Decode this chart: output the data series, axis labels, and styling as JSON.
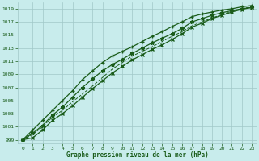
{
  "xlabel": "Graphe pression niveau de la mer (hPa)",
  "xlim": [
    -0.5,
    23.5
  ],
  "ylim": [
    998.5,
    1020
  ],
  "yticks": [
    999,
    1001,
    1003,
    1005,
    1007,
    1009,
    1011,
    1013,
    1015,
    1017,
    1019
  ],
  "xticks": [
    0,
    1,
    2,
    3,
    4,
    5,
    6,
    7,
    8,
    9,
    10,
    11,
    12,
    13,
    14,
    15,
    16,
    17,
    18,
    19,
    20,
    21,
    22,
    23
  ],
  "bg_color": "#c8ecec",
  "line_color": "#1a5c1a",
  "grid_color": "#a0c8c8",
  "line_main": [
    999.0,
    1000.0,
    1001.2,
    1002.8,
    1004.0,
    1005.5,
    1007.0,
    1008.3,
    1009.5,
    1010.5,
    1011.3,
    1012.2,
    1013.0,
    1013.8,
    1014.5,
    1015.2,
    1016.0,
    1017.0,
    1017.5,
    1018.0,
    1018.4,
    1018.7,
    1019.0,
    1019.2
  ],
  "line_upper": [
    999.0,
    1000.5,
    1002.0,
    1003.5,
    1005.0,
    1006.5,
    1008.2,
    1009.5,
    1010.8,
    1011.8,
    1012.5,
    1013.2,
    1014.0,
    1014.8,
    1015.5,
    1016.3,
    1017.0,
    1017.8,
    1018.2,
    1018.5,
    1018.8,
    1019.0,
    1019.3,
    1019.5
  ],
  "line_lower": [
    999.0,
    999.3,
    1000.5,
    1002.0,
    1003.0,
    1004.2,
    1005.5,
    1006.8,
    1008.0,
    1009.2,
    1010.2,
    1011.2,
    1012.0,
    1012.8,
    1013.5,
    1014.3,
    1015.2,
    1016.2,
    1016.8,
    1017.5,
    1018.0,
    1018.5,
    1018.9,
    1019.2
  ],
  "line_dot": [
    999.0,
    999.8,
    1001.0,
    1002.5,
    1003.5,
    1004.8,
    1006.0,
    1007.2,
    1008.5,
    1009.8,
    1010.8,
    1011.8,
    1012.5,
    1013.2,
    1014.0,
    1014.8,
    1015.5,
    1016.4,
    1017.0,
    1017.6,
    1018.1,
    1018.6,
    1019.0,
    1019.3
  ]
}
